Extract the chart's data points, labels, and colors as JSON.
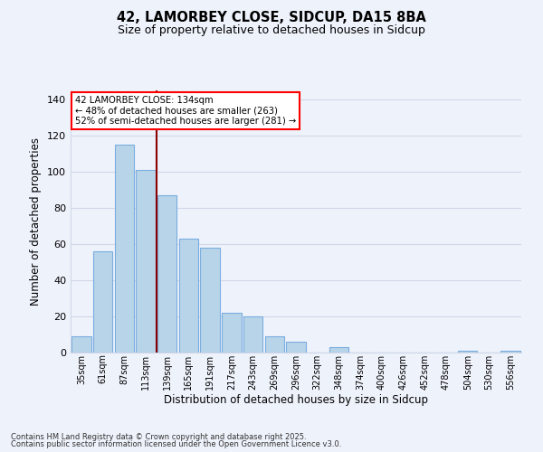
{
  "title": "42, LAMORBEY CLOSE, SIDCUP, DA15 8BA",
  "subtitle": "Size of property relative to detached houses in Sidcup",
  "xlabel": "Distribution of detached houses by size in Sidcup",
  "ylabel": "Number of detached properties",
  "categories": [
    "35sqm",
    "61sqm",
    "87sqm",
    "113sqm",
    "139sqm",
    "165sqm",
    "191sqm",
    "217sqm",
    "243sqm",
    "269sqm",
    "296sqm",
    "322sqm",
    "348sqm",
    "374sqm",
    "400sqm",
    "426sqm",
    "452sqm",
    "478sqm",
    "504sqm",
    "530sqm",
    "556sqm"
  ],
  "values": [
    9,
    56,
    115,
    101,
    87,
    63,
    58,
    22,
    20,
    9,
    6,
    0,
    3,
    0,
    0,
    0,
    0,
    0,
    1,
    0,
    1
  ],
  "bar_color": "#b8d4e8",
  "bar_edge_color": "#7aade0",
  "vline_color": "#8b0000",
  "vline_x_pos": 3.5,
  "ylim": [
    0,
    145
  ],
  "yticks": [
    0,
    20,
    40,
    60,
    80,
    100,
    120,
    140
  ],
  "annotation_text_line1": "42 LAMORBEY CLOSE: 134sqm",
  "annotation_text_line2": "← 48% of detached houses are smaller (263)",
  "annotation_text_line3": "52% of semi-detached houses are larger (281) →",
  "footer_line1": "Contains HM Land Registry data © Crown copyright and database right 2025.",
  "footer_line2": "Contains public sector information licensed under the Open Government Licence v3.0.",
  "background_color": "#eef2fb",
  "grid_color": "#d0d8e8"
}
